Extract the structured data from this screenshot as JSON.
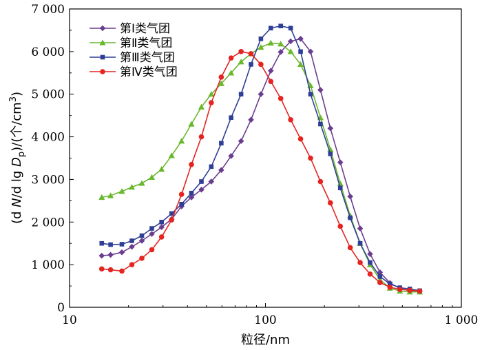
{
  "chart_data": {
    "type": "line",
    "x_scale": "log",
    "xlim": [
      10,
      1000
    ],
    "ylim": [
      0,
      7000
    ],
    "xlabel": "粒径/nm",
    "ylabel": "(d N/d lg Dp)/(个/cm3)",
    "ylabel_parts": {
      "prefix": "(d ",
      "var1": "N",
      "mid": "/d lg ",
      "var2": "D",
      "sub": "p",
      "suffix": ")/(个/cm",
      "sup": "3",
      "close": ")"
    },
    "xticks": [
      {
        "value": 10,
        "label": "10"
      },
      {
        "value": 100,
        "label": "100"
      },
      {
        "value": 1000,
        "label": "1 000"
      }
    ],
    "yticks": [
      {
        "value": 0,
        "label": "0"
      },
      {
        "value": 1000,
        "label": "1 000"
      },
      {
        "value": 2000,
        "label": "2 000"
      },
      {
        "value": 3000,
        "label": "3 000"
      },
      {
        "value": 4000,
        "label": "4 000"
      },
      {
        "value": 5000,
        "label": "5 000"
      },
      {
        "value": 6000,
        "label": "6 000"
      },
      {
        "value": 7000,
        "label": "7 000"
      }
    ],
    "legend_position": "top-left",
    "grid": false,
    "series": [
      {
        "name": "第Ⅰ类气团",
        "color": "#6a3d8f",
        "marker": "diamond",
        "x": [
          14.6,
          16.2,
          18.5,
          20.8,
          23.4,
          26.3,
          29.5,
          33.2,
          37.3,
          41.9,
          47.1,
          52.9,
          59.5,
          66.8,
          75.1,
          84.4,
          94.8,
          106.5,
          119.7,
          134.5,
          151.2,
          169.9,
          190.9,
          214.5,
          241.1,
          270.9,
          304.4,
          342.1,
          384.4,
          432.0,
          485.5,
          545.6,
          613.1
        ],
        "y": [
          1210,
          1230,
          1290,
          1420,
          1560,
          1720,
          1880,
          2070,
          2370,
          2580,
          2760,
          2950,
          3220,
          3550,
          3900,
          4400,
          5000,
          5550,
          5990,
          6240,
          6300,
          6000,
          5100,
          4200,
          3400,
          2600,
          1850,
          1250,
          820,
          570,
          440,
          390,
          370
        ]
      },
      {
        "name": "第Ⅱ类气团",
        "color": "#6ab82d",
        "marker": "triangle",
        "x": [
          14.6,
          16.2,
          18.5,
          20.8,
          23.4,
          26.3,
          29.5,
          33.2,
          37.3,
          41.9,
          47.1,
          52.9,
          59.5,
          66.8,
          75.1,
          84.4,
          94.8,
          106.5,
          119.7,
          134.5,
          151.2,
          169.9,
          190.9,
          214.5,
          241.1,
          270.9,
          304.4,
          342.1,
          384.4,
          432.0,
          485.5,
          545.6,
          613.1
        ],
        "y": [
          2580,
          2620,
          2720,
          2820,
          2910,
          3050,
          3240,
          3560,
          3900,
          4300,
          4700,
          5000,
          5250,
          5500,
          5760,
          5950,
          6100,
          6200,
          6180,
          6000,
          5700,
          5200,
          4450,
          3700,
          2900,
          2150,
          1500,
          1000,
          650,
          450,
          380,
          360,
          360
        ]
      },
      {
        "name": "第Ⅲ类气团",
        "color": "#2e3f95",
        "marker": "square",
        "x": [
          14.6,
          16.2,
          18.5,
          20.8,
          23.4,
          26.3,
          29.5,
          33.2,
          37.3,
          41.9,
          47.1,
          52.9,
          59.5,
          66.8,
          75.1,
          84.4,
          94.8,
          106.5,
          119.7,
          134.5,
          151.2,
          169.9,
          190.9,
          214.5,
          241.1,
          270.9,
          304.4,
          342.1,
          384.4,
          432.0,
          485.5,
          545.6,
          613.1
        ],
        "y": [
          1500,
          1470,
          1480,
          1560,
          1680,
          1850,
          2000,
          2200,
          2420,
          2680,
          2950,
          3300,
          3850,
          4450,
          5000,
          5700,
          6300,
          6550,
          6600,
          6550,
          6000,
          5000,
          4300,
          3600,
          2800,
          2100,
          1500,
          1050,
          720,
          550,
          460,
          430,
          390
        ]
      },
      {
        "name": "第Ⅳ类气团",
        "color": "#e52421",
        "marker": "circle",
        "x": [
          14.6,
          16.2,
          18.5,
          20.8,
          23.4,
          26.3,
          29.5,
          33.2,
          37.3,
          41.9,
          47.1,
          52.9,
          59.5,
          66.8,
          75.1,
          84.4,
          94.8,
          106.5,
          119.7,
          134.5,
          151.2,
          169.9,
          190.9,
          214.5,
          241.1,
          270.9,
          304.4,
          342.1,
          384.4,
          432.0,
          485.5,
          545.6,
          613.1
        ],
        "y": [
          900,
          880,
          850,
          1000,
          1150,
          1350,
          1650,
          2050,
          2650,
          3350,
          4000,
          4800,
          5400,
          5850,
          6000,
          5950,
          5700,
          5300,
          4900,
          4400,
          3950,
          3500,
          2950,
          2450,
          1900,
          1400,
          1050,
          780,
          580,
          470,
          420,
          400,
          380
        ]
      }
    ]
  }
}
